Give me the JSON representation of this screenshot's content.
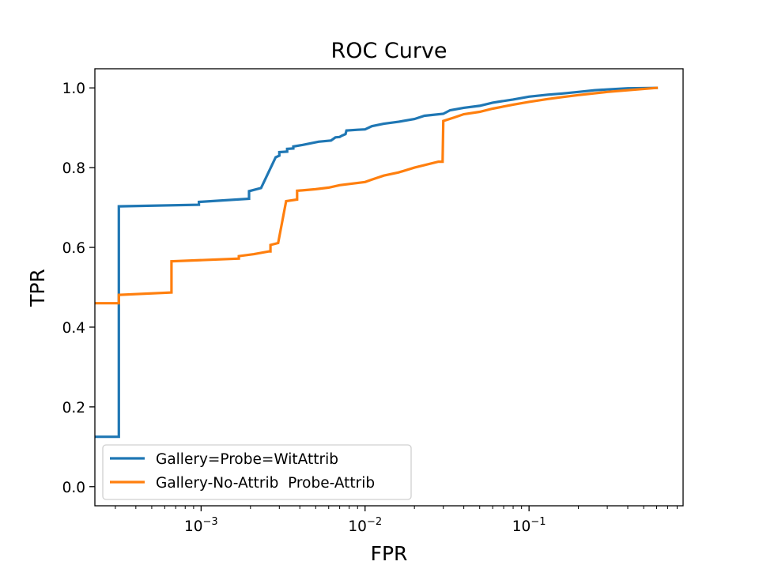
{
  "chart_data": {
    "type": "line",
    "title": "ROC Curve",
    "xlabel": "FPR",
    "ylabel": "TPR",
    "xscale": "log",
    "xlim": [
      0.000225,
      0.87
    ],
    "ylim": [
      -0.048,
      1.048
    ],
    "xticks": [
      {
        "value": 0.001,
        "base": "10",
        "exp": "−3"
      },
      {
        "value": 0.01,
        "base": "10",
        "exp": "−2"
      },
      {
        "value": 0.1,
        "base": "10",
        "exp": "−1"
      }
    ],
    "yticks": [
      {
        "value": 0.0,
        "label": "0.0"
      },
      {
        "value": 0.2,
        "label": "0.2"
      },
      {
        "value": 0.4,
        "label": "0.4"
      },
      {
        "value": 0.6,
        "label": "0.6"
      },
      {
        "value": 0.8,
        "label": "0.8"
      },
      {
        "value": 1.0,
        "label": "1.0"
      }
    ],
    "grid": false,
    "legend_position": "lower-left",
    "series": [
      {
        "name": "Gallery=Probe=WitAttrib",
        "color": "#1f77b4",
        "x": [
          0.000225,
          0.000315,
          0.000315,
          0.00097,
          0.00097,
          0.00196,
          0.00196,
          0.00232,
          0.00285,
          0.003,
          0.003,
          0.00335,
          0.00335,
          0.00365,
          0.00365,
          0.00415,
          0.0052,
          0.0062,
          0.0066,
          0.007,
          0.0072,
          0.0076,
          0.0077,
          0.009,
          0.01,
          0.011,
          0.013,
          0.016,
          0.02,
          0.023,
          0.03,
          0.033,
          0.04,
          0.05,
          0.06,
          0.08,
          0.1,
          0.13,
          0.16,
          0.2,
          0.25,
          0.3,
          0.4,
          0.6
        ],
        "y": [
          0.125,
          0.125,
          0.703,
          0.707,
          0.714,
          0.722,
          0.741,
          0.749,
          0.826,
          0.83,
          0.839,
          0.84,
          0.847,
          0.848,
          0.853,
          0.857,
          0.865,
          0.868,
          0.876,
          0.877,
          0.88,
          0.884,
          0.893,
          0.895,
          0.896,
          0.904,
          0.91,
          0.915,
          0.922,
          0.93,
          0.935,
          0.944,
          0.95,
          0.955,
          0.963,
          0.971,
          0.978,
          0.983,
          0.986,
          0.99,
          0.994,
          0.996,
          0.999,
          1.0
        ]
      },
      {
        "name": "Gallery-No-Attrib  Probe-Attrib",
        "color": "#ff7f0e",
        "x": [
          0.000225,
          0.000315,
          0.000315,
          0.00066,
          0.00066,
          0.0017,
          0.0017,
          0.0021,
          0.0026,
          0.00265,
          0.00265,
          0.00295,
          0.0033,
          0.00385,
          0.00385,
          0.005,
          0.006,
          0.007,
          0.01,
          0.011,
          0.013,
          0.016,
          0.02,
          0.028,
          0.0297,
          0.03,
          0.035,
          0.04,
          0.05,
          0.06,
          0.08,
          0.1,
          0.13,
          0.16,
          0.2,
          0.3,
          0.4,
          0.6
        ],
        "y": [
          0.46,
          0.46,
          0.481,
          0.487,
          0.565,
          0.572,
          0.578,
          0.583,
          0.59,
          0.59,
          0.606,
          0.611,
          0.716,
          0.72,
          0.742,
          0.746,
          0.75,
          0.756,
          0.764,
          0.77,
          0.78,
          0.788,
          0.8,
          0.815,
          0.815,
          0.917,
          0.926,
          0.934,
          0.94,
          0.948,
          0.958,
          0.965,
          0.972,
          0.977,
          0.982,
          0.99,
          0.994,
          1.0
        ]
      }
    ]
  }
}
